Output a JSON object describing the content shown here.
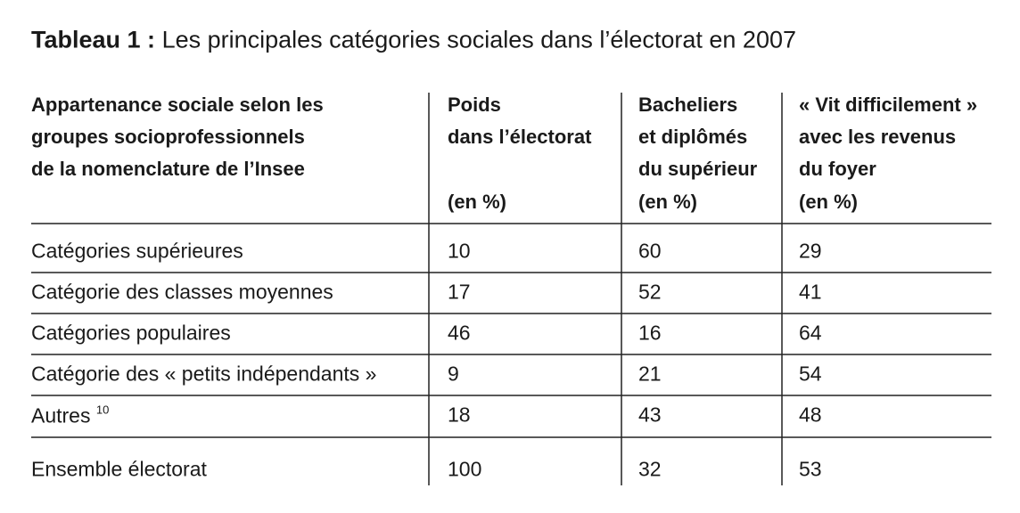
{
  "title": {
    "label": "Tableau 1 :",
    "text": "Les principales catégories sociales dans l’électorat en 2007"
  },
  "table": {
    "header": [
      [
        "Appartenance sociale selon les",
        "groupes socioprofessionnels",
        "de la nomenclature de l’Insee"
      ],
      [
        "Poids",
        "dans l’électorat",
        "(en %)"
      ],
      [
        "Bacheliers",
        "et diplômés",
        "du supérieur",
        "(en %)"
      ],
      [
        "« Vit difficilement »",
        "avec les revenus",
        "du foyer",
        "(en %)"
      ]
    ],
    "rows": [
      {
        "label": "Catégories supérieures",
        "values": [
          10,
          60,
          29
        ]
      },
      {
        "label": "Catégorie des classes moyennes",
        "values": [
          17,
          52,
          41
        ]
      },
      {
        "label": "Catégories populaires",
        "values": [
          46,
          16,
          64
        ]
      },
      {
        "label": "Catégorie des « petits indépendants »",
        "values": [
          9,
          21,
          54
        ]
      },
      {
        "label": "Autres",
        "note": "10",
        "values": [
          18,
          43,
          48
        ]
      },
      {
        "label": "Ensemble électorat",
        "values": [
          100,
          32,
          53
        ]
      }
    ]
  }
}
